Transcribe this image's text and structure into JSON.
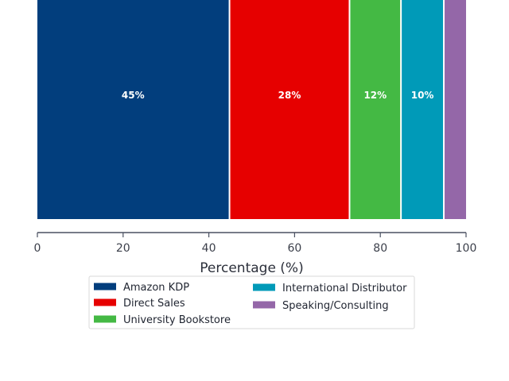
{
  "chart_data": {
    "type": "bar",
    "orientation": "horizontal-stacked",
    "categories": [
      ""
    ],
    "series": [
      {
        "name": "Amazon KDP",
        "values": [
          45
        ],
        "label": "45%",
        "color": "#023E7D"
      },
      {
        "name": "Direct Sales",
        "values": [
          28
        ],
        "label": "28%",
        "color": "#E60000"
      },
      {
        "name": "University Bookstore",
        "values": [
          12
        ],
        "label": "12%",
        "color": "#44B944"
      },
      {
        "name": "International Distributor",
        "values": [
          10
        ],
        "label": "10%",
        "color": "#009AB8"
      },
      {
        "name": "Speaking/Consulting",
        "values": [
          5
        ],
        "label": "",
        "color": "#9467A8"
      }
    ],
    "xlabel": "Percentage (%)",
    "xlim": [
      0,
      100
    ],
    "xticks": [
      "0",
      "20",
      "40",
      "60",
      "80",
      "100"
    ],
    "grid": false,
    "legend_position": "bottom-center",
    "legend_columns": 2
  }
}
